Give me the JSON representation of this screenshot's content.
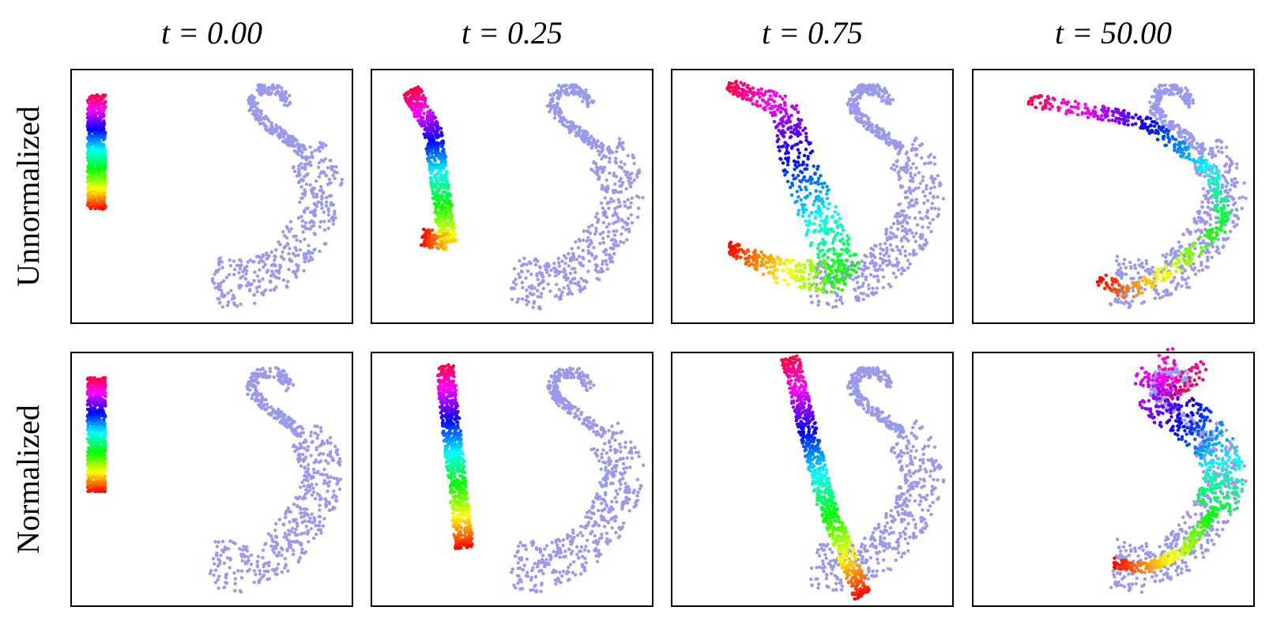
{
  "columns": [
    "t = 0.00",
    "t = 0.25",
    "t = 0.75",
    "t = 50.00"
  ],
  "rows": [
    "Unnormalized",
    "Normalized"
  ]
}
